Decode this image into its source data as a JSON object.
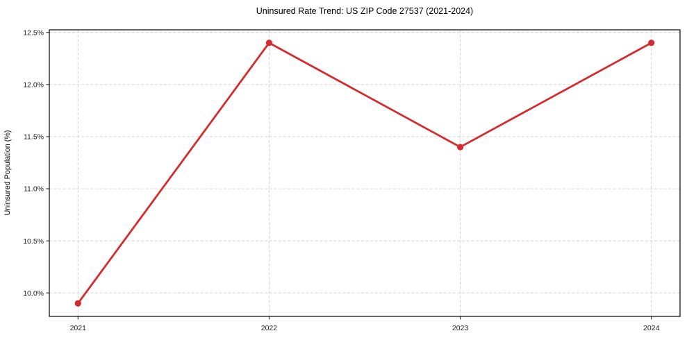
{
  "chart_data": {
    "type": "line",
    "title": "Uninsured Rate Trend: US ZIP Code 27537 (2021-2024)",
    "xlabel": "",
    "ylabel": "Uninsured Population (%)",
    "x": [
      2021,
      2022,
      2023,
      2024
    ],
    "values": [
      9.9,
      12.4,
      11.4,
      12.4
    ],
    "xticks": [
      2021,
      2022,
      2023,
      2024
    ],
    "xtick_labels": [
      "2021",
      "2022",
      "2023",
      "2024"
    ],
    "yticks": [
      10.0,
      10.5,
      11.0,
      11.5,
      12.0,
      12.5
    ],
    "ytick_labels": [
      "10.0%",
      "10.5%",
      "11.0%",
      "11.5%",
      "12.0%",
      "12.5%"
    ],
    "xlim": [
      2020.85,
      2024.15
    ],
    "ylim": [
      9.775,
      12.525
    ],
    "grid": true,
    "grid_style": "dashed",
    "legend": "none",
    "line_color": "#d62b2e",
    "marker_color": "#d62b2e",
    "grid_color": "#cfcfcf",
    "frame_color": "#000000",
    "tick_color": "#262626",
    "text_color": "#1a1a1a"
  }
}
